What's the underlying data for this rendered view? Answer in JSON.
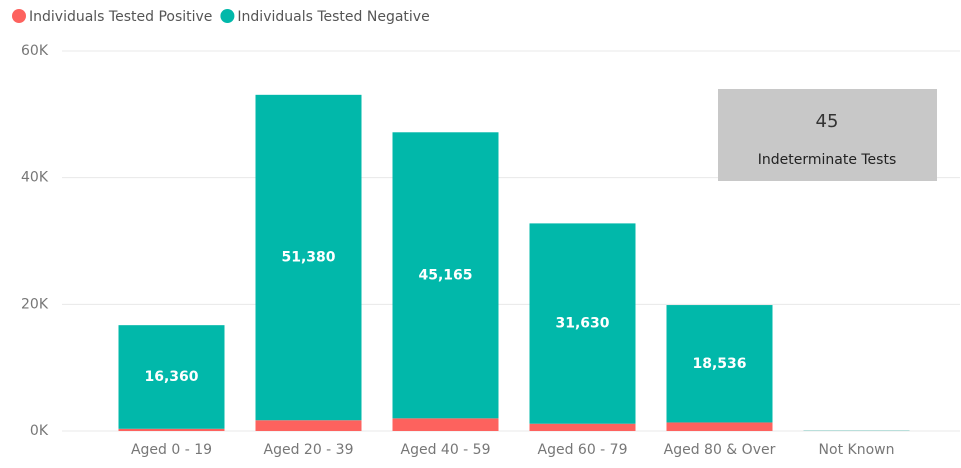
{
  "chart_data": {
    "type": "stacked_bar",
    "categories": [
      "Aged 0 - 19",
      "Aged 20 - 39",
      "Aged 40 - 59",
      "Aged 60 - 79",
      "Aged 80 & Over",
      "Not Known"
    ],
    "series": [
      {
        "name": "Individuals Tested Positive",
        "color": "#fd625e",
        "values": [
          350,
          1700,
          2000,
          1150,
          1350,
          20
        ]
      },
      {
        "name": "Individuals Tested Negative",
        "color": "#01b8aa",
        "values": [
          16360,
          51380,
          45165,
          31630,
          18536,
          40
        ],
        "value_labels": [
          "16,360",
          "51,380",
          "45,165",
          "31,630",
          "18,536",
          null
        ]
      }
    ],
    "ylim": [
      0,
      60000
    ],
    "yticks": [
      {
        "value": 0,
        "label": "0K"
      },
      {
        "value": 20000,
        "label": "20K"
      },
      {
        "value": 40000,
        "label": "40K"
      },
      {
        "value": 60000,
        "label": "60K"
      }
    ],
    "grid": true,
    "legend": "top-left"
  },
  "card": {
    "value": 45,
    "label": "Indeterminate Tests"
  }
}
